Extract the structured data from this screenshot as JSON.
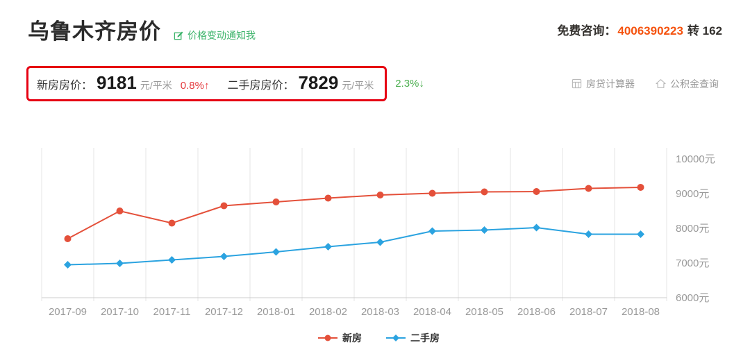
{
  "header": {
    "title": "乌鲁木齐房价",
    "notify_label": "价格变动通知我",
    "consult_label": "免费咨询：",
    "phone": "4006390223",
    "extension": "转 162"
  },
  "price_bar": {
    "new_label": "新房房价：",
    "new_value": "9181",
    "new_unit": "元/平米",
    "new_change": "0.8%",
    "new_direction": "↑",
    "second_label": "二手房房价：",
    "second_value": "7829",
    "second_unit": "元/平米",
    "second_change": "2.3%",
    "second_direction": "↓"
  },
  "tools": [
    {
      "label": "房贷计算器",
      "icon": "calculator-icon"
    },
    {
      "label": "公积金查询",
      "icon": "house-icon"
    }
  ],
  "chart_data": {
    "type": "line",
    "x": [
      "2017-09",
      "2017-10",
      "2017-11",
      "2017-12",
      "2018-01",
      "2018-02",
      "2018-03",
      "2018-04",
      "2018-05",
      "2018-06",
      "2018-07",
      "2018-08"
    ],
    "series": [
      {
        "name": "新房",
        "color": "#e4503a",
        "marker": "circle",
        "values": [
          7700,
          8500,
          8150,
          8650,
          8760,
          8870,
          8960,
          9010,
          9050,
          9060,
          9150,
          9181
        ]
      },
      {
        "name": "二手房",
        "color": "#2ba3e0",
        "marker": "diamond",
        "values": [
          6950,
          6990,
          7090,
          7190,
          7320,
          7470,
          7600,
          7920,
          7950,
          8020,
          7830,
          7829
        ]
      }
    ],
    "ylim": [
      6000,
      10000
    ],
    "ytick_values": [
      10000,
      9000,
      8000,
      7000,
      6000
    ],
    "ytick_labels": [
      "10000元",
      "9000元",
      "8000元",
      "7000元",
      "6000元"
    ],
    "grid": "vertical",
    "legend_position": "bottom"
  },
  "colors": {
    "accent_red": "#e60012",
    "change_up": "#e4393c",
    "change_down": "#4caf50",
    "notify_green": "#3cb36a",
    "phone_orange": "#f5530f",
    "new_series": "#e4503a",
    "second_series": "#2ba3e0",
    "grid_line": "#e6e6e6",
    "tick_text": "#999999"
  }
}
